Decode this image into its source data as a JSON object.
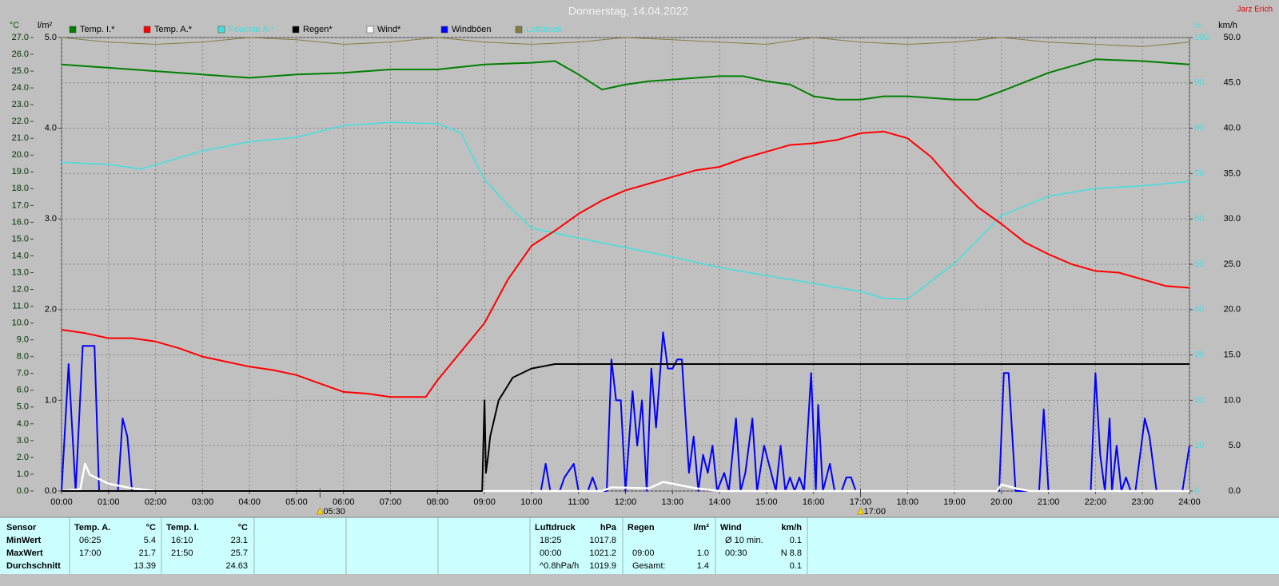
{
  "chart_data": {
    "type": "line",
    "title": "Donnerstag, 14.04.2022",
    "author": "Jarz Erich",
    "y_label": "°C",
    "y2_label": "l/m²",
    "y3_label": "%",
    "y4_label": "km/h",
    "xlim": [
      0,
      24
    ],
    "xticks": [
      {
        "value": 0,
        "label": "00:00"
      },
      {
        "value": 1,
        "label": "01:00"
      },
      {
        "value": 2,
        "label": "02:00"
      },
      {
        "value": 3,
        "label": "03:00"
      },
      {
        "value": 4,
        "label": "04:00"
      },
      {
        "value": 5,
        "label": "05:00"
      },
      {
        "value": 6,
        "label": "06:00"
      },
      {
        "value": 7,
        "label": "07:00"
      },
      {
        "value": 8,
        "label": "08:00"
      },
      {
        "value": 9,
        "label": "09:00"
      },
      {
        "value": 10,
        "label": "10:00"
      },
      {
        "value": 11,
        "label": "11:00"
      },
      {
        "value": 12,
        "label": "12:00"
      },
      {
        "value": 13,
        "label": "13:00"
      },
      {
        "value": 14,
        "label": "14:00"
      },
      {
        "value": 15,
        "label": "15:00"
      },
      {
        "value": 16,
        "label": "16:00"
      },
      {
        "value": 17,
        "label": "17:00"
      },
      {
        "value": 18,
        "label": "18:00"
      },
      {
        "value": 19,
        "label": "19:00"
      },
      {
        "value": 20,
        "label": "20:00"
      },
      {
        "value": 21,
        "label": "21:00"
      },
      {
        "value": 22,
        "label": "22:00"
      },
      {
        "value": 23,
        "label": "23:00"
      },
      {
        "value": 24,
        "label": "24:00"
      }
    ],
    "ylim": [
      0,
      27
    ],
    "yticks": [
      {
        "value": 0,
        "label": "0.0"
      },
      {
        "value": 1,
        "label": "1.0"
      },
      {
        "value": 2,
        "label": "2.0"
      },
      {
        "value": 3,
        "label": "3.0"
      },
      {
        "value": 4,
        "label": "4.0"
      },
      {
        "value": 5,
        "label": "5.0"
      },
      {
        "value": 6,
        "label": "6.0"
      },
      {
        "value": 7,
        "label": "7.0"
      },
      {
        "value": 8,
        "label": "8.0"
      },
      {
        "value": 9,
        "label": "9.0"
      },
      {
        "value": 10,
        "label": "10.0"
      },
      {
        "value": 11,
        "label": "11.0"
      },
      {
        "value": 12,
        "label": "12.0"
      },
      {
        "value": 13,
        "label": "13.0"
      },
      {
        "value": 14,
        "label": "14.0"
      },
      {
        "value": 15,
        "label": "15.0"
      },
      {
        "value": 16,
        "label": "16.0"
      },
      {
        "value": 17,
        "label": "17.0"
      },
      {
        "value": 18,
        "label": "18.0"
      },
      {
        "value": 19,
        "label": "19.0"
      },
      {
        "value": 20,
        "label": "20.0"
      },
      {
        "value": 21,
        "label": "21.0"
      },
      {
        "value": 22,
        "label": "22.0"
      },
      {
        "value": 23,
        "label": "23.0"
      },
      {
        "value": 24,
        "label": "24.0"
      },
      {
        "value": 25,
        "label": "25.0"
      },
      {
        "value": 26,
        "label": "26.0"
      },
      {
        "value": 27,
        "label": "27.0"
      }
    ],
    "y2lim": [
      0,
      5
    ],
    "y2ticks": [
      {
        "value": 0,
        "label": "0.0"
      },
      {
        "value": 1,
        "label": "1.0"
      },
      {
        "value": 2,
        "label": "2.0"
      },
      {
        "value": 3,
        "label": "3.0"
      },
      {
        "value": 4,
        "label": "4.0"
      },
      {
        "value": 5,
        "label": "5.0"
      }
    ],
    "y3lim": [
      0,
      100
    ],
    "y3ticks": [
      0,
      10,
      20,
      30,
      40,
      50,
      60,
      70,
      80,
      90,
      100
    ],
    "y4lim": [
      0,
      50
    ],
    "y4ticks": [
      {
        "value": 0,
        "label": "0.0"
      },
      {
        "value": 5,
        "label": "5.0"
      },
      {
        "value": 10,
        "label": "10.0"
      },
      {
        "value": 15,
        "label": "15.0"
      },
      {
        "value": 20,
        "label": "20.0"
      },
      {
        "value": 25,
        "label": "25.0"
      },
      {
        "value": 30,
        "label": "30.0"
      },
      {
        "value": 35,
        "label": "35.0"
      },
      {
        "value": 40,
        "label": "40.0"
      },
      {
        "value": 45,
        "label": "45.0"
      },
      {
        "value": 50,
        "label": "50.0"
      }
    ],
    "grid": true,
    "series": [
      {
        "name": "Temp. I.*",
        "color": "#008000",
        "axis": "y",
        "x": [
          0,
          1,
          2,
          3,
          4,
          5,
          6,
          7,
          8,
          9,
          10,
          10.5,
          11,
          11.5,
          12,
          12.5,
          13,
          14,
          14.5,
          15,
          15.5,
          16,
          16.5,
          17,
          17.5,
          18,
          19,
          19.5,
          20,
          21,
          22,
          23,
          24
        ],
        "values": [
          25.4,
          25.2,
          25.0,
          24.8,
          24.6,
          24.8,
          24.9,
          25.1,
          25.1,
          25.4,
          25.5,
          25.6,
          24.8,
          23.9,
          24.2,
          24.4,
          24.5,
          24.7,
          24.7,
          24.4,
          24.2,
          23.5,
          23.3,
          23.3,
          23.5,
          23.5,
          23.3,
          23.3,
          23.8,
          24.9,
          25.7,
          25.6,
          25.4
        ]
      },
      {
        "name": "Temp. A.*",
        "color": "#ff0000",
        "axis": "y",
        "x": [
          0,
          0.5,
          1,
          1.5,
          2,
          2.5,
          3,
          3.5,
          4,
          4.5,
          5,
          5.5,
          6,
          6.5,
          7,
          7.5,
          7.75,
          8,
          8.5,
          9,
          9.5,
          10,
          10.5,
          11,
          11.5,
          12,
          12.5,
          13,
          13.5,
          14,
          14.5,
          15,
          15.5,
          16,
          16.5,
          17,
          17.5,
          18,
          18.5,
          19,
          19.5,
          20,
          20.5,
          21,
          21.5,
          22,
          22.5,
          23,
          23.5,
          24
        ],
        "values": [
          9.6,
          9.4,
          9.1,
          9.1,
          8.9,
          8.5,
          8.0,
          7.7,
          7.4,
          7.2,
          6.9,
          6.4,
          5.9,
          5.8,
          5.6,
          5.6,
          5.6,
          6.6,
          8.3,
          10.0,
          12.6,
          14.6,
          15.5,
          16.5,
          17.3,
          17.9,
          18.3,
          18.7,
          19.1,
          19.3,
          19.8,
          20.2,
          20.6,
          20.7,
          20.9,
          21.3,
          21.4,
          21.0,
          19.9,
          18.3,
          16.9,
          15.9,
          14.8,
          14.1,
          13.5,
          13.1,
          13.0,
          12.6,
          12.2,
          12.1
        ]
      },
      {
        "name": "Feuchte A.*",
        "color": "#40e0e0",
        "axis": "y3",
        "x": [
          0,
          1,
          1.7,
          3,
          4,
          5,
          6,
          7,
          8,
          8.5,
          9,
          9.5,
          10,
          11,
          12,
          13,
          14,
          15,
          16,
          17,
          17.5,
          18,
          19,
          20,
          21,
          22,
          23,
          24
        ],
        "values": [
          72.5,
          72,
          71,
          75,
          77,
          78,
          80.6,
          81.3,
          81,
          79,
          68.7,
          63,
          58,
          55.8,
          53.7,
          51.6,
          49.3,
          47.5,
          45.8,
          44,
          42.5,
          42.3,
          50.2,
          60.7,
          65,
          66.7,
          67.3,
          68.3
        ]
      },
      {
        "name": "Regen*",
        "color": "#000000",
        "axis": "y2",
        "x": [
          0,
          8.95,
          9.0,
          9.03,
          9.08,
          9.12,
          9.3,
          9.6,
          10,
          10.5,
          24
        ],
        "values": [
          0,
          0,
          1.0,
          0.2,
          0.4,
          0.6,
          1.0,
          1.25,
          1.35,
          1.4,
          1.4
        ]
      },
      {
        "name": "Wind*",
        "color": "#ffffff",
        "axis": "y4",
        "x": [
          0,
          0.4,
          0.5,
          0.6,
          1,
          1.5,
          2,
          11.5,
          11.7,
          12.5,
          12.8,
          13.5,
          14,
          19.9,
          20,
          20.3,
          20.6,
          24
        ],
        "values": [
          0,
          0.2,
          3.0,
          1.8,
          0.8,
          0.3,
          0,
          0,
          0.4,
          0.3,
          1.0,
          0.3,
          0,
          0,
          0.7,
          0.3,
          0,
          0
        ]
      },
      {
        "name": "Windböen",
        "color": "#0000ff",
        "axis": "y4",
        "x": [
          0,
          0.15,
          0.3,
          0.45,
          0.55,
          0.7,
          0.8,
          1.2,
          1.3,
          1.4,
          1.5,
          10.2,
          10.3,
          10.4,
          10.6,
          10.7,
          10.9,
          11.0,
          11.2,
          11.3,
          11.4,
          11.6,
          11.7,
          11.8,
          11.9,
          12.0,
          12.15,
          12.25,
          12.35,
          12.45,
          12.55,
          12.65,
          12.8,
          12.9,
          13.0,
          13.1,
          13.2,
          13.35,
          13.45,
          13.55,
          13.65,
          13.75,
          13.85,
          13.95,
          14.1,
          14.2,
          14.35,
          14.45,
          14.55,
          14.7,
          14.8,
          14.95,
          15.05,
          15.2,
          15.3,
          15.4,
          15.5,
          15.6,
          15.7,
          15.8,
          15.95,
          16.05,
          16.1,
          16.2,
          16.35,
          16.45,
          16.6,
          16.7,
          16.8,
          16.9,
          19.95,
          20.05,
          20.15,
          20.3,
          20.8,
          20.9,
          21.0,
          21.9,
          22.0,
          22.1,
          22.2,
          22.3,
          22.35,
          22.45,
          22.55,
          22.65,
          22.75,
          22.85,
          22.95,
          23.05,
          23.15,
          23.3,
          23.45,
          23.75,
          23.85,
          24
        ],
        "values": [
          0,
          14,
          0,
          16,
          16,
          16,
          0,
          0,
          8,
          6,
          0,
          0,
          3,
          0,
          0,
          1.5,
          3,
          0,
          0,
          1.5,
          0,
          0,
          14.5,
          10,
          10,
          0,
          11,
          5,
          10,
          0,
          13.5,
          7,
          17.5,
          13.5,
          13.5,
          14.5,
          14.5,
          2,
          6,
          0,
          4,
          2,
          5,
          0,
          2,
          0,
          8,
          0,
          2,
          8,
          0,
          5,
          3,
          0,
          5,
          0,
          1.5,
          0,
          1.5,
          0,
          13,
          0,
          9.5,
          0,
          3,
          0,
          0,
          1.5,
          1.5,
          0,
          0,
          13,
          13,
          0,
          0,
          9,
          0,
          0,
          13,
          4,
          0,
          8,
          0,
          5,
          0,
          1.5,
          0,
          0,
          4,
          8,
          6,
          0,
          0,
          0,
          0,
          5
        ]
      },
      {
        "name": "Luftdruck",
        "color": "#808040",
        "axis": "y3",
        "x": [
          0,
          1,
          2,
          3,
          4,
          5,
          6,
          7,
          8,
          9,
          10,
          11,
          12,
          13,
          14,
          15,
          16,
          17,
          18,
          19,
          20,
          21,
          22,
          23,
          24
        ],
        "values": [
          100,
          99,
          98.5,
          99,
          100,
          99.5,
          98.5,
          99,
          100,
          99,
          98.5,
          99,
          100,
          99.5,
          99,
          98.5,
          100,
          99,
          98.5,
          99,
          100,
          99,
          98.5,
          98,
          99
        ]
      }
    ],
    "sun_markers": [
      {
        "x": 5.5,
        "label": "05:30"
      },
      {
        "x": 17,
        "label": "17:00"
      }
    ]
  },
  "table": {
    "row_labels": [
      "Sensor",
      "MinWert",
      "MaxWert",
      "Durchschnitt"
    ],
    "sections": [
      {
        "title": "Temp. A.",
        "unit": "°C",
        "rows": [
          [
            "06:25",
            "5.4"
          ],
          [
            "17:00",
            "21.7"
          ],
          [
            null,
            "13.39"
          ]
        ]
      },
      {
        "title": "Temp. I.",
        "unit": "°C",
        "rows": [
          [
            "16:10",
            "23.1"
          ],
          [
            "21:50",
            "25.7"
          ],
          [
            null,
            "24.63"
          ]
        ]
      },
      {
        "title": "Luftdruck",
        "unit": "hPa",
        "rows": [
          [
            "18:25",
            "1017.8"
          ],
          [
            "00:00",
            "1021.2"
          ],
          [
            "^0.8hPa/h",
            "1019.9"
          ]
        ]
      },
      {
        "title": "Regen",
        "unit": "l/m²",
        "rows": [
          [
            null,
            null
          ],
          [
            "09:00",
            "1.0"
          ],
          [
            "Gesamt:",
            "1.4"
          ]
        ]
      },
      {
        "title": "Wind",
        "unit": "km/h",
        "rows": [
          [
            "Ø 10 min.",
            "0.1"
          ],
          [
            "00:30",
            "N 8.8"
          ],
          [
            null,
            "0.1"
          ]
        ]
      }
    ]
  }
}
